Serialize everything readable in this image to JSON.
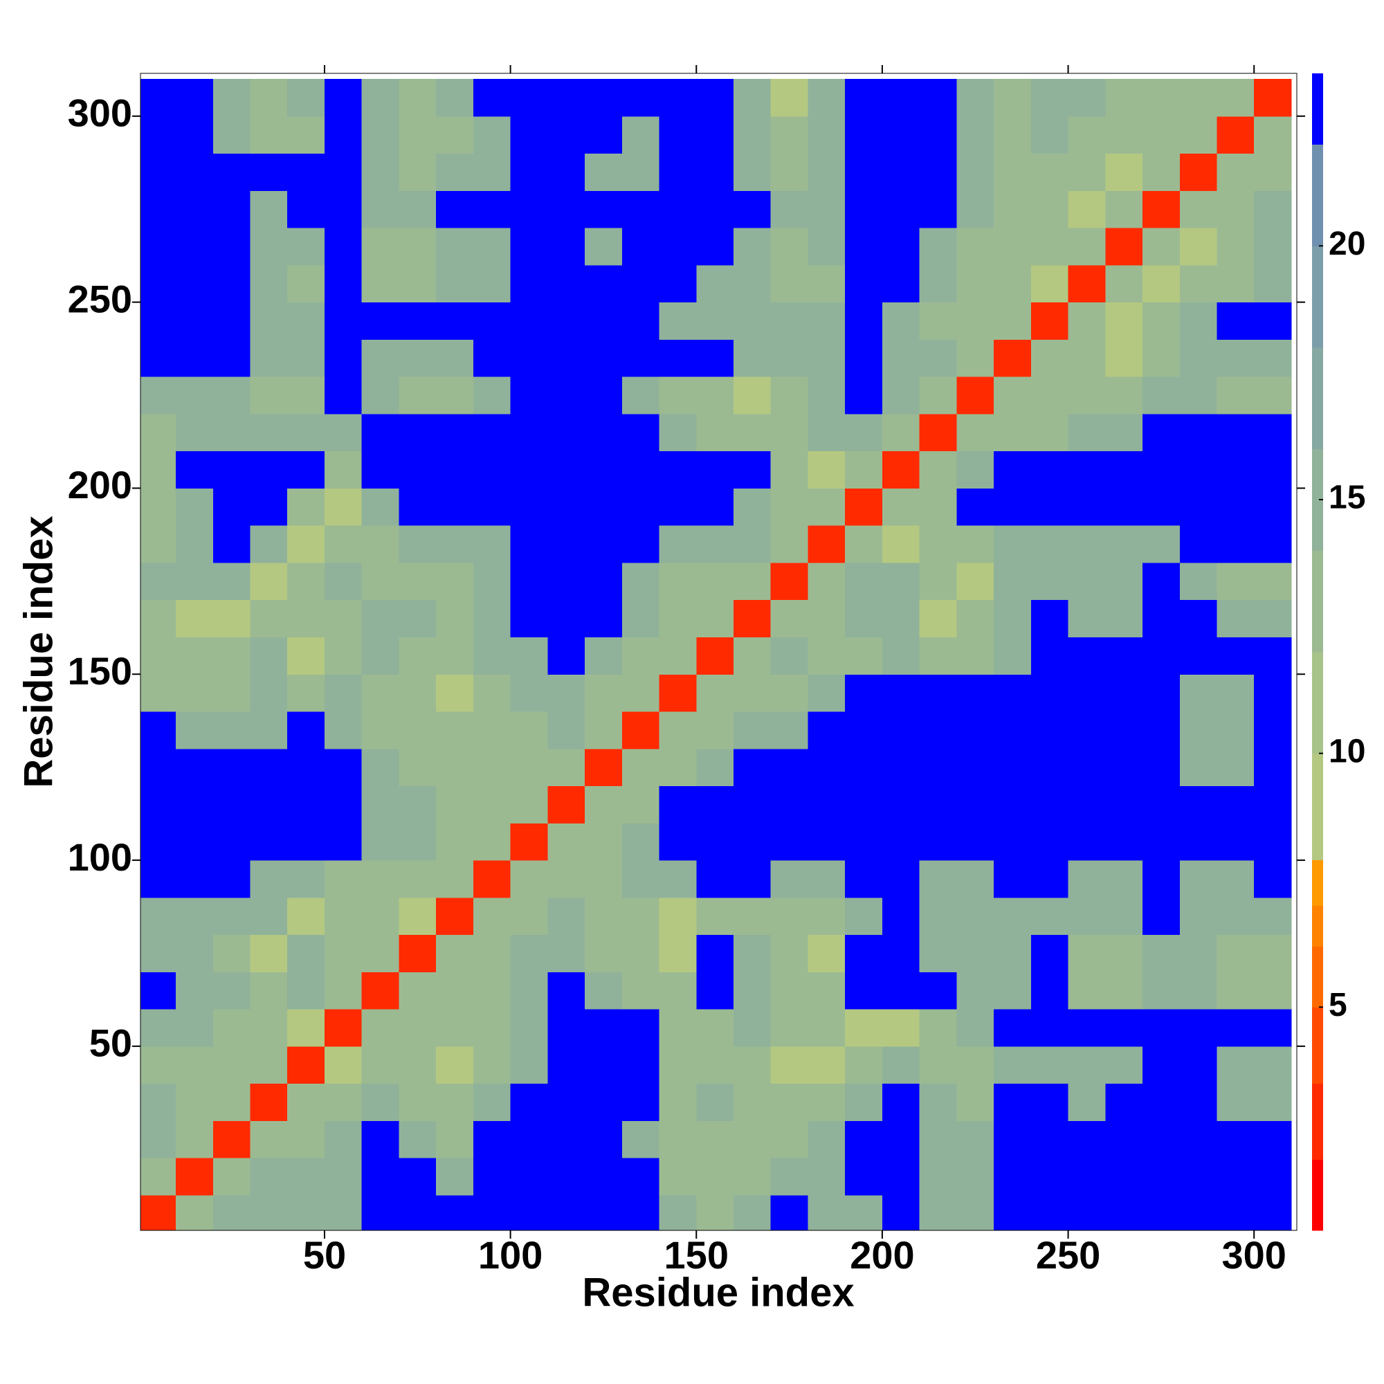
{
  "chart_data": {
    "type": "heatmap",
    "xlabel": "Residue index",
    "ylabel": "Residue index",
    "xlim": [
      0.5,
      311.5
    ],
    "ylim": [
      0.5,
      311.5
    ],
    "xticks": [
      50,
      100,
      150,
      200,
      250,
      300
    ],
    "yticks": [
      50,
      100,
      150,
      200,
      250,
      300
    ],
    "zlim": [
      0.6,
      23.4
    ],
    "zticks": [
      5,
      10,
      15,
      20
    ],
    "levels": [
      0.6,
      2,
      3.5,
      5,
      6.2,
      7,
      7.9,
      10,
      12,
      14,
      16,
      18,
      20,
      22,
      23.4
    ],
    "colors": [
      "#ff0000",
      "#ff2a00",
      "#ff4a00",
      "#ff6a00",
      "#ff8200",
      "#ff9a00",
      "#b4c882",
      "#a8c38a",
      "#9cba92",
      "#90b29a",
      "#86a8a2",
      "#7c9eaa",
      "#7090b0",
      "#0000ff"
    ],
    "x": [
      5,
      15,
      25,
      35,
      45,
      55,
      65,
      75,
      85,
      95,
      105,
      115,
      125,
      135,
      145,
      155,
      165,
      175,
      185,
      195,
      205,
      215,
      225,
      235,
      245,
      255,
      265,
      275,
      285,
      295,
      305
    ],
    "y": [
      5,
      15,
      25,
      35,
      45,
      55,
      65,
      75,
      85,
      95,
      105,
      115,
      125,
      135,
      145,
      155,
      165,
      175,
      185,
      195,
      205,
      215,
      225,
      235,
      245,
      255,
      265,
      275,
      285,
      295,
      305
    ],
    "z": [
      [
        2,
        12,
        15,
        15,
        15,
        15,
        23,
        23,
        23,
        23,
        23,
        23,
        23,
        23,
        15,
        12,
        15,
        23,
        15,
        15,
        23,
        15,
        15,
        23,
        23,
        23,
        23,
        23,
        23,
        23,
        23
      ],
      [
        12,
        2,
        12,
        15,
        15,
        15,
        23,
        23,
        15,
        23,
        23,
        23,
        23,
        23,
        12,
        12,
        12,
        15,
        15,
        23,
        23,
        15,
        15,
        23,
        23,
        23,
        23,
        23,
        23,
        23,
        23
      ],
      [
        15,
        12,
        2,
        12,
        12,
        15,
        23,
        15,
        12,
        23,
        23,
        23,
        23,
        15,
        12,
        12,
        12,
        12,
        15,
        23,
        23,
        15,
        15,
        23,
        23,
        23,
        23,
        23,
        23,
        23,
        23
      ],
      [
        15,
        12,
        12,
        2,
        12,
        12,
        15,
        12,
        12,
        15,
        23,
        23,
        23,
        23,
        12,
        15,
        12,
        12,
        12,
        15,
        23,
        15,
        12,
        23,
        23,
        15,
        23,
        23,
        23,
        15,
        15
      ],
      [
        12,
        12,
        12,
        12,
        2,
        8,
        12,
        12,
        8,
        12,
        15,
        23,
        23,
        23,
        12,
        12,
        12,
        8,
        8,
        12,
        15,
        12,
        12,
        15,
        15,
        15,
        15,
        23,
        23,
        15,
        15
      ],
      [
        15,
        15,
        12,
        12,
        8,
        2,
        12,
        12,
        12,
        12,
        15,
        23,
        23,
        23,
        12,
        12,
        15,
        12,
        12,
        8,
        8,
        12,
        15,
        23,
        23,
        23,
        23,
        23,
        23,
        23,
        23
      ],
      [
        23,
        15,
        15,
        12,
        15,
        12,
        2,
        12,
        12,
        12,
        15,
        23,
        15,
        12,
        12,
        23,
        15,
        12,
        12,
        23,
        23,
        23,
        15,
        15,
        23,
        12,
        12,
        15,
        15,
        12,
        12
      ],
      [
        15,
        15,
        12,
        8,
        15,
        12,
        12,
        2,
        12,
        12,
        15,
        15,
        12,
        12,
        8,
        23,
        15,
        12,
        8,
        23,
        23,
        15,
        15,
        15,
        23,
        12,
        12,
        15,
        15,
        12,
        12
      ],
      [
        15,
        15,
        15,
        15,
        8,
        12,
        12,
        8,
        2,
        12,
        12,
        15,
        12,
        12,
        8,
        12,
        12,
        12,
        12,
        15,
        23,
        15,
        15,
        15,
        15,
        15,
        15,
        23,
        15,
        15,
        15
      ],
      [
        23,
        23,
        23,
        15,
        15,
        12,
        12,
        12,
        12,
        2,
        12,
        12,
        12,
        15,
        15,
        23,
        23,
        15,
        15,
        23,
        23,
        15,
        15,
        23,
        23,
        15,
        15,
        23,
        15,
        15,
        23
      ],
      [
        23,
        23,
        23,
        23,
        23,
        23,
        15,
        15,
        12,
        12,
        2,
        12,
        12,
        15,
        23,
        23,
        23,
        23,
        23,
        23,
        23,
        23,
        23,
        23,
        23,
        23,
        23,
        23,
        23,
        23,
        23
      ],
      [
        23,
        23,
        23,
        23,
        23,
        23,
        15,
        15,
        12,
        12,
        12,
        2,
        12,
        12,
        23,
        23,
        23,
        23,
        23,
        23,
        23,
        23,
        23,
        23,
        23,
        23,
        23,
        23,
        23,
        23,
        23
      ],
      [
        23,
        23,
        23,
        23,
        23,
        23,
        15,
        12,
        12,
        12,
        12,
        12,
        2,
        12,
        12,
        15,
        23,
        23,
        23,
        23,
        23,
        23,
        23,
        23,
        23,
        23,
        23,
        23,
        15,
        15,
        23
      ],
      [
        23,
        15,
        15,
        15,
        23,
        15,
        12,
        12,
        12,
        12,
        12,
        15,
        12,
        2,
        12,
        12,
        15,
        15,
        23,
        23,
        23,
        23,
        23,
        23,
        23,
        23,
        23,
        23,
        15,
        15,
        23
      ],
      [
        12,
        12,
        12,
        15,
        12,
        15,
        12,
        12,
        8,
        12,
        15,
        15,
        12,
        12,
        2,
        12,
        12,
        12,
        15,
        23,
        23,
        23,
        23,
        23,
        23,
        23,
        23,
        23,
        15,
        15,
        23
      ],
      [
        12,
        12,
        12,
        15,
        8,
        12,
        15,
        12,
        12,
        15,
        15,
        23,
        15,
        12,
        12,
        2,
        12,
        15,
        12,
        12,
        15,
        12,
        12,
        15,
        23,
        23,
        23,
        23,
        23,
        23,
        23
      ],
      [
        12,
        8,
        8,
        12,
        12,
        12,
        15,
        15,
        12,
        15,
        23,
        23,
        23,
        15,
        12,
        12,
        2,
        12,
        12,
        15,
        15,
        8,
        12,
        15,
        23,
        15,
        15,
        23,
        23,
        15,
        15
      ],
      [
        15,
        15,
        15,
        8,
        12,
        15,
        12,
        12,
        12,
        15,
        23,
        23,
        23,
        15,
        12,
        12,
        12,
        2,
        12,
        15,
        15,
        12,
        8,
        15,
        15,
        15,
        15,
        23,
        15,
        12,
        12
      ],
      [
        12,
        15,
        23,
        15,
        8,
        12,
        12,
        15,
        15,
        15,
        23,
        23,
        23,
        23,
        15,
        15,
        15,
        12,
        2,
        12,
        8,
        12,
        12,
        15,
        15,
        15,
        15,
        15,
        23,
        23,
        23
      ],
      [
        12,
        15,
        23,
        23,
        12,
        8,
        15,
        23,
        23,
        23,
        23,
        23,
        23,
        23,
        23,
        23,
        15,
        12,
        12,
        2,
        12,
        12,
        23,
        23,
        23,
        23,
        23,
        23,
        23,
        23,
        23
      ],
      [
        12,
        23,
        23,
        23,
        23,
        12,
        23,
        23,
        23,
        23,
        23,
        23,
        23,
        23,
        23,
        23,
        23,
        12,
        8,
        12,
        2,
        12,
        15,
        23,
        23,
        23,
        23,
        23,
        23,
        23,
        23
      ],
      [
        12,
        15,
        15,
        15,
        15,
        15,
        23,
        23,
        23,
        23,
        23,
        23,
        23,
        23,
        15,
        12,
        12,
        12,
        15,
        15,
        12,
        2,
        12,
        12,
        12,
        15,
        15,
        23,
        23,
        23,
        23
      ],
      [
        15,
        15,
        15,
        12,
        12,
        23,
        15,
        12,
        12,
        15,
        23,
        23,
        23,
        15,
        12,
        12,
        8,
        12,
        15,
        23,
        15,
        12,
        2,
        12,
        12,
        12,
        12,
        15,
        15,
        12,
        12
      ],
      [
        23,
        23,
        23,
        15,
        15,
        23,
        15,
        15,
        15,
        23,
        23,
        23,
        23,
        23,
        23,
        23,
        15,
        15,
        15,
        23,
        15,
        15,
        12,
        2,
        12,
        12,
        8,
        12,
        15,
        15,
        15
      ],
      [
        23,
        23,
        23,
        15,
        15,
        23,
        23,
        23,
        23,
        23,
        23,
        23,
        23,
        23,
        15,
        15,
        15,
        15,
        15,
        23,
        15,
        12,
        12,
        12,
        2,
        12,
        8,
        12,
        15,
        23,
        23
      ],
      [
        23,
        23,
        23,
        15,
        12,
        23,
        12,
        12,
        15,
        15,
        23,
        23,
        23,
        23,
        23,
        15,
        15,
        12,
        12,
        23,
        23,
        15,
        12,
        12,
        8,
        2,
        12,
        8,
        12,
        12,
        15
      ],
      [
        23,
        23,
        23,
        15,
        15,
        23,
        12,
        12,
        15,
        15,
        23,
        23,
        15,
        23,
        23,
        23,
        15,
        12,
        15,
        23,
        23,
        15,
        12,
        12,
        12,
        12,
        2,
        12,
        8,
        12,
        15
      ],
      [
        23,
        23,
        23,
        15,
        23,
        23,
        15,
        15,
        23,
        23,
        23,
        23,
        23,
        23,
        23,
        23,
        23,
        15,
        15,
        23,
        23,
        23,
        15,
        12,
        12,
        8,
        12,
        2,
        12,
        12,
        15
      ],
      [
        23,
        23,
        23,
        23,
        23,
        23,
        15,
        12,
        15,
        15,
        23,
        23,
        15,
        15,
        23,
        23,
        15,
        12,
        15,
        23,
        23,
        23,
        15,
        12,
        12,
        12,
        8,
        12,
        2,
        12,
        12
      ],
      [
        23,
        23,
        15,
        12,
        12,
        23,
        15,
        12,
        12,
        15,
        23,
        23,
        23,
        15,
        23,
        23,
        15,
        12,
        15,
        23,
        23,
        23,
        15,
        12,
        15,
        12,
        12,
        12,
        12,
        2,
        12
      ],
      [
        23,
        23,
        15,
        12,
        15,
        23,
        15,
        12,
        15,
        23,
        23,
        23,
        23,
        23,
        23,
        23,
        15,
        8,
        15,
        23,
        23,
        23,
        15,
        12,
        15,
        15,
        12,
        12,
        12,
        12,
        2
      ]
    ]
  }
}
